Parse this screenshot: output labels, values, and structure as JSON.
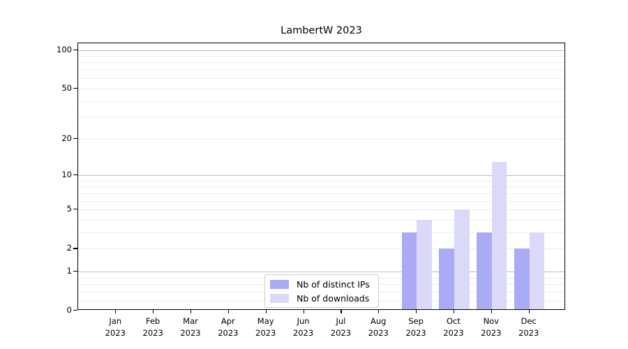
{
  "chart_data": {
    "type": "bar",
    "title": "LambertW 2023",
    "categories": [
      "Jan",
      "Feb",
      "Mar",
      "Apr",
      "May",
      "Jun",
      "Jul",
      "Aug",
      "Sep",
      "Oct",
      "Nov",
      "Dec"
    ],
    "year_label": "2023",
    "series": [
      {
        "name": "Nb of distinct IPs",
        "color": "#aaaaf6",
        "values": [
          0,
          0,
          0,
          0,
          0,
          0,
          0,
          0,
          3,
          2,
          3,
          2
        ]
      },
      {
        "name": "Nb of downloads",
        "color": "#dadaf8",
        "values": [
          0,
          0,
          0,
          0,
          0,
          0,
          0,
          0,
          4,
          5,
          13,
          3
        ]
      }
    ],
    "xlabel": "",
    "ylabel": "",
    "yscale": "log1p",
    "ylim": [
      0,
      112
    ],
    "yticks": [
      0,
      1,
      2,
      5,
      10,
      20,
      50,
      100
    ],
    "grid": {
      "major": [
        1,
        10,
        100
      ],
      "minor": [
        0.2,
        0.4,
        0.6,
        0.8,
        2,
        3,
        4,
        5,
        6,
        7,
        8,
        9,
        20,
        30,
        40,
        50,
        60,
        70,
        80,
        90
      ]
    },
    "legend": {
      "position": "lower center",
      "entries": [
        "Nb of distinct IPs",
        "Nb of downloads"
      ]
    }
  },
  "colors": {
    "bar_distinct_ips": "#aaaaf6",
    "bar_downloads": "#dadaf8",
    "grid_major": "#bbbbbb",
    "grid_minor": "#ececec",
    "spine": "#000000",
    "background": "#ffffff"
  }
}
